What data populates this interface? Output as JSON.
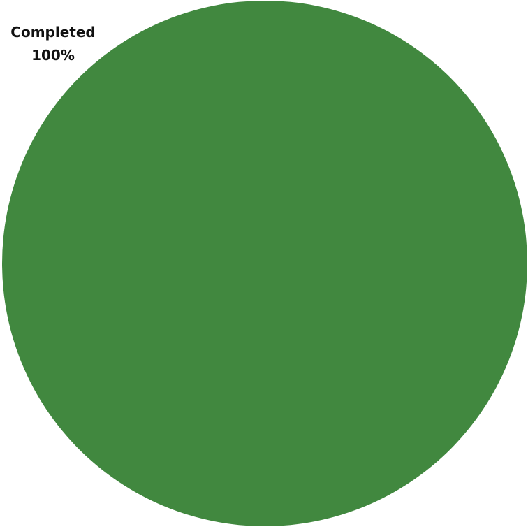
{
  "chart_data": {
    "type": "pie",
    "slices": [
      {
        "label": "Completed",
        "value": 100,
        "percent_label": "100%",
        "color": "#41883f"
      }
    ],
    "title": "",
    "legend": "none"
  }
}
